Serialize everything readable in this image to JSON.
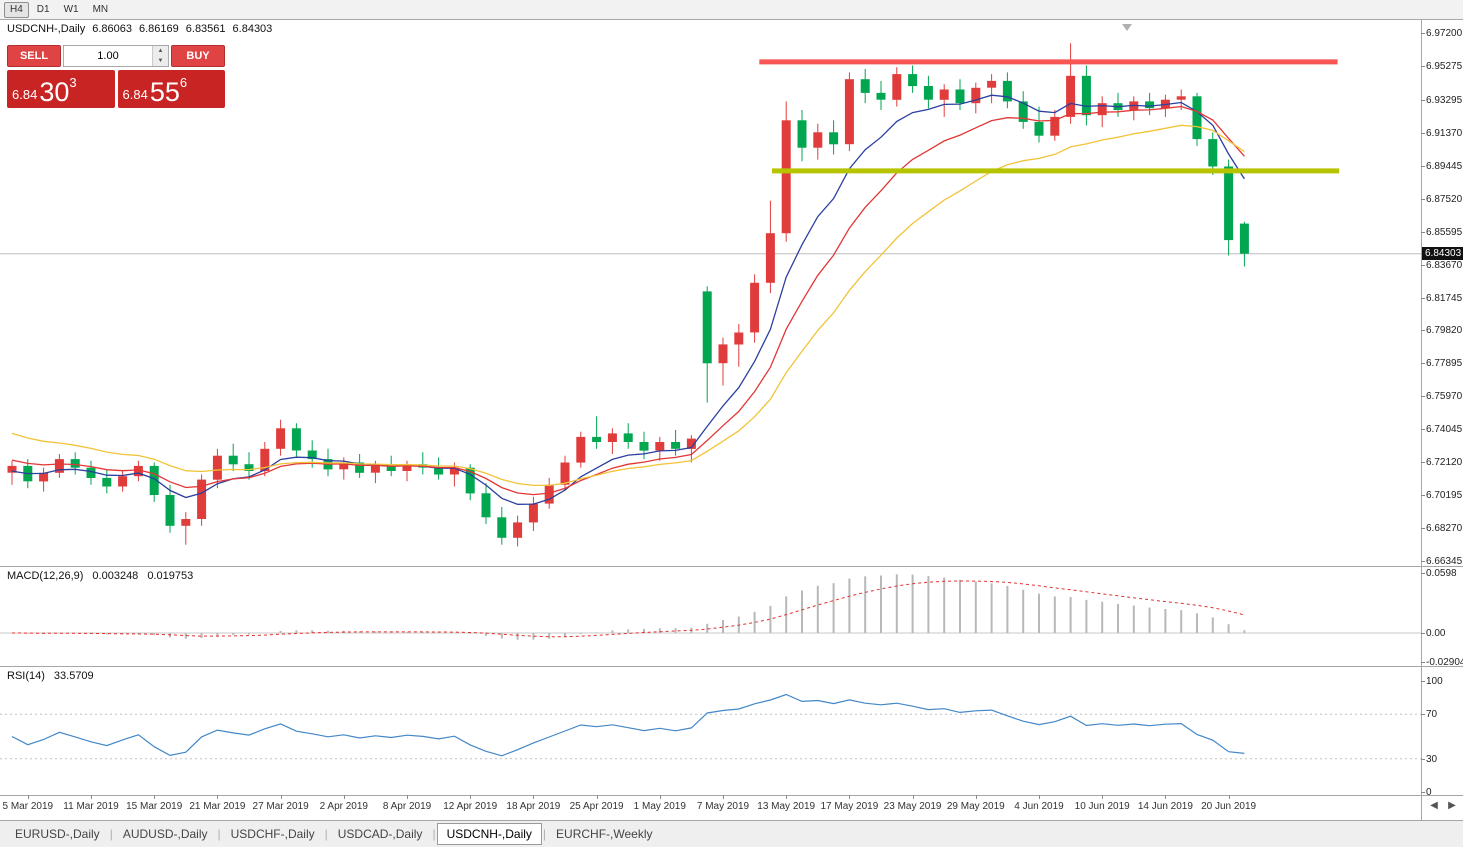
{
  "toolbar": {
    "timeframes": [
      "H4",
      "D1",
      "W1",
      "MN"
    ],
    "active": "H4"
  },
  "quote": {
    "symbol_timeframe": "USDCNH-,Daily",
    "open": "6.86063",
    "high": "6.86169",
    "low": "6.83561",
    "close": "6.84303"
  },
  "trade_panel": {
    "sell_label": "SELL",
    "buy_label": "BUY",
    "volume": "1.00",
    "bid": {
      "small": "6.84",
      "big": "30",
      "sup": "3"
    },
    "ask": {
      "small": "6.84",
      "big": "55",
      "sup": "6"
    }
  },
  "icons": {
    "spinner_up": "▲",
    "spinner_down": "▼",
    "nav_left": "◀",
    "nav_right": "▶"
  },
  "tabs": {
    "items": [
      {
        "label": "EURUSD-,Daily",
        "active": false
      },
      {
        "label": "AUDUSD-,Daily",
        "active": false
      },
      {
        "label": "USDCHF-,Daily",
        "active": false
      },
      {
        "label": "USDCAD-,Daily",
        "active": false
      },
      {
        "label": "USDCNH-,Daily",
        "active": true
      },
      {
        "label": "EURCHF-,Weekly",
        "active": false
      }
    ]
  },
  "chart_data": {
    "type": "candlestick",
    "symbol": "USDCNH-",
    "timeframe": "Daily",
    "current_price": 6.84303,
    "current_price_label": "6.84303",
    "colors": {
      "bull": "#e03c3c",
      "bear": "#00a650",
      "grid": "#c8c8c8",
      "current_line": "#bdbdbd"
    },
    "price_axis": {
      "max": 6.972,
      "min": 6.66345,
      "labels": [
        "6.97200",
        "6.95275",
        "6.93295",
        "6.91370",
        "6.89445",
        "6.87520",
        "6.85595",
        "6.83670",
        "6.81745",
        "6.79820",
        "6.77895",
        "6.75970",
        "6.74045",
        "6.72120",
        "6.70195",
        "6.68270",
        "6.66345"
      ]
    },
    "date_axis": [
      {
        "label": "5 Mar 2019",
        "index": 1
      },
      {
        "label": "11 Mar 2019",
        "index": 5
      },
      {
        "label": "15 Mar 2019",
        "index": 9
      },
      {
        "label": "21 Mar 2019",
        "index": 13
      },
      {
        "label": "27 Mar 2019",
        "index": 17
      },
      {
        "label": "2 Apr 2019",
        "index": 21
      },
      {
        "label": "8 Apr 2019",
        "index": 25
      },
      {
        "label": "12 Apr 2019",
        "index": 29
      },
      {
        "label": "18 Apr 2019",
        "index": 33
      },
      {
        "label": "25 Apr 2019",
        "index": 37
      },
      {
        "label": "1 May 2019",
        "index": 41
      },
      {
        "label": "7 May 2019",
        "index": 45
      },
      {
        "label": "13 May 2019",
        "index": 49
      },
      {
        "label": "17 May 2019",
        "index": 53
      },
      {
        "label": "23 May 2019",
        "index": 57
      },
      {
        "label": "29 May 2019",
        "index": 61
      },
      {
        "label": "4 Jun 2019",
        "index": 65
      },
      {
        "label": "10 Jun 2019",
        "index": 69
      },
      {
        "label": "14 Jun 2019",
        "index": 73
      },
      {
        "label": "20 Jun 2019",
        "index": 77
      }
    ],
    "candles": [
      [
        6.715,
        6.722,
        6.708,
        6.719
      ],
      [
        6.719,
        6.723,
        6.706,
        6.71
      ],
      [
        6.71,
        6.718,
        6.704,
        6.715
      ],
      [
        6.715,
        6.726,
        6.712,
        6.723
      ],
      [
        6.723,
        6.727,
        6.714,
        6.718
      ],
      [
        6.718,
        6.722,
        6.708,
        6.712
      ],
      [
        6.712,
        6.717,
        6.703,
        6.707
      ],
      [
        6.707,
        6.716,
        6.704,
        6.713
      ],
      [
        6.713,
        6.722,
        6.71,
        6.719
      ],
      [
        6.719,
        6.721,
        6.698,
        6.702
      ],
      [
        6.702,
        6.708,
        6.68,
        6.684
      ],
      [
        6.684,
        6.692,
        6.673,
        6.688
      ],
      [
        6.688,
        6.714,
        6.684,
        6.711
      ],
      [
        6.711,
        6.729,
        6.706,
        6.725
      ],
      [
        6.725,
        6.732,
        6.716,
        6.72
      ],
      [
        6.72,
        6.727,
        6.711,
        6.716
      ],
      [
        6.716,
        6.733,
        6.713,
        6.729
      ],
      [
        6.729,
        6.746,
        6.725,
        6.741
      ],
      [
        6.741,
        6.744,
        6.724,
        6.728
      ],
      [
        6.728,
        6.734,
        6.718,
        6.723
      ],
      [
        6.723,
        6.729,
        6.713,
        6.717
      ],
      [
        6.717,
        6.724,
        6.711,
        6.721
      ],
      [
        6.721,
        6.726,
        6.712,
        6.715
      ],
      [
        6.715,
        6.722,
        6.709,
        6.719
      ],
      [
        6.719,
        6.725,
        6.713,
        6.716
      ],
      [
        6.716,
        6.722,
        6.71,
        6.72
      ],
      [
        6.72,
        6.727,
        6.714,
        6.718
      ],
      [
        6.718,
        6.724,
        6.711,
        6.714
      ],
      [
        6.714,
        6.721,
        6.707,
        6.718
      ],
      [
        6.718,
        6.72,
        6.699,
        6.703
      ],
      [
        6.703,
        6.709,
        6.685,
        6.689
      ],
      [
        6.689,
        6.695,
        6.673,
        6.677
      ],
      [
        6.677,
        6.69,
        6.672,
        6.686
      ],
      [
        6.686,
        6.701,
        6.681,
        6.697
      ],
      [
        6.697,
        6.712,
        6.694,
        6.708
      ],
      [
        6.708,
        6.725,
        6.705,
        6.721
      ],
      [
        6.721,
        6.739,
        6.718,
        6.736
      ],
      [
        6.736,
        6.748,
        6.729,
        6.733
      ],
      [
        6.733,
        6.741,
        6.726,
        6.738
      ],
      [
        6.738,
        6.744,
        6.729,
        6.733
      ],
      [
        6.733,
        6.739,
        6.723,
        6.728
      ],
      [
        6.728,
        6.736,
        6.722,
        6.733
      ],
      [
        6.733,
        6.74,
        6.725,
        6.729
      ],
      [
        6.729,
        6.737,
        6.721,
        6.735
      ],
      [
        6.821,
        6.824,
        6.756,
        6.779
      ],
      [
        6.779,
        6.794,
        6.766,
        6.79
      ],
      [
        6.79,
        6.802,
        6.777,
        6.797
      ],
      [
        6.797,
        6.831,
        6.791,
        6.826
      ],
      [
        6.826,
        6.874,
        6.82,
        6.855
      ],
      [
        6.855,
        6.932,
        6.85,
        6.921
      ],
      [
        6.921,
        6.927,
        6.897,
        6.905
      ],
      [
        6.905,
        6.919,
        6.898,
        6.914
      ],
      [
        6.914,
        6.921,
        6.901,
        6.907
      ],
      [
        6.907,
        6.949,
        6.903,
        6.945
      ],
      [
        6.945,
        6.951,
        6.931,
        6.937
      ],
      [
        6.937,
        6.944,
        6.927,
        6.933
      ],
      [
        6.933,
        6.952,
        6.929,
        6.948
      ],
      [
        6.948,
        6.953,
        6.937,
        6.941
      ],
      [
        6.941,
        6.947,
        6.928,
        6.933
      ],
      [
        6.933,
        6.942,
        6.923,
        6.939
      ],
      [
        6.939,
        6.945,
        6.927,
        6.931
      ],
      [
        6.931,
        6.943,
        6.925,
        6.94
      ],
      [
        6.94,
        6.948,
        6.931,
        6.944
      ],
      [
        6.944,
        6.949,
        6.928,
        6.932
      ],
      [
        6.932,
        6.938,
        6.916,
        6.92
      ],
      [
        6.92,
        6.929,
        6.908,
        6.912
      ],
      [
        6.912,
        6.927,
        6.909,
        6.923
      ],
      [
        6.923,
        6.966,
        6.919,
        6.947
      ],
      [
        6.947,
        6.953,
        6.918,
        6.924
      ],
      [
        6.924,
        6.935,
        6.917,
        6.931
      ],
      [
        6.931,
        6.937,
        6.923,
        6.927
      ],
      [
        6.927,
        6.935,
        6.921,
        6.932
      ],
      [
        6.932,
        6.937,
        6.924,
        6.928
      ],
      [
        6.928,
        6.936,
        6.923,
        6.933
      ],
      [
        6.933,
        6.939,
        6.927,
        6.935
      ],
      [
        6.935,
        6.937,
        6.906,
        6.91
      ],
      [
        6.91,
        6.914,
        6.889,
        6.894
      ],
      [
        6.894,
        6.898,
        6.842,
        6.851
      ],
      [
        6.86063,
        6.86169,
        6.83561,
        6.84303
      ]
    ],
    "moving_averages": [
      {
        "name": "fast",
        "period": 7,
        "seed": 6.715,
        "color": "#2b3f9f"
      },
      {
        "name": "mid",
        "period": 12,
        "seed": 6.723,
        "color": "#e33636"
      },
      {
        "name": "slow",
        "period": 20,
        "seed": 6.74,
        "color": "#f2c338"
      }
    ],
    "levels": [
      {
        "name": "resistance",
        "price": 6.9551,
        "from_index": 47.3,
        "to_index": 83.9,
        "color": "#f85555",
        "width": 5
      },
      {
        "name": "support",
        "price": 6.8914,
        "from_index": 48.1,
        "to_index": 84.0,
        "color": "#b6c400",
        "width": 5
      }
    ],
    "indicators": {
      "macd": {
        "label": "MACD(12,26,9)",
        "value_main": "0.003248",
        "value_signal": "0.019753",
        "fast": 12,
        "slow": 26,
        "signal": 9,
        "hist_color": "#b8b8b8",
        "signal_color": "#e03131",
        "scale": [
          {
            "label": "0.0598",
            "v": 0.0598
          },
          {
            "label": "0.00",
            "v": 0
          },
          {
            "label": "-0.029049",
            "v": -0.029049
          }
        ]
      },
      "rsi": {
        "label": "RSI(14)",
        "value": "33.5709",
        "period": 14,
        "color": "#4387c7",
        "levels": [
          70,
          30
        ],
        "scale": [
          {
            "label": "100",
            "v": 100
          },
          {
            "label": "70",
            "v": 70
          },
          {
            "label": "30",
            "v": 30
          },
          {
            "label": "0",
            "v": 0
          }
        ]
      }
    }
  }
}
